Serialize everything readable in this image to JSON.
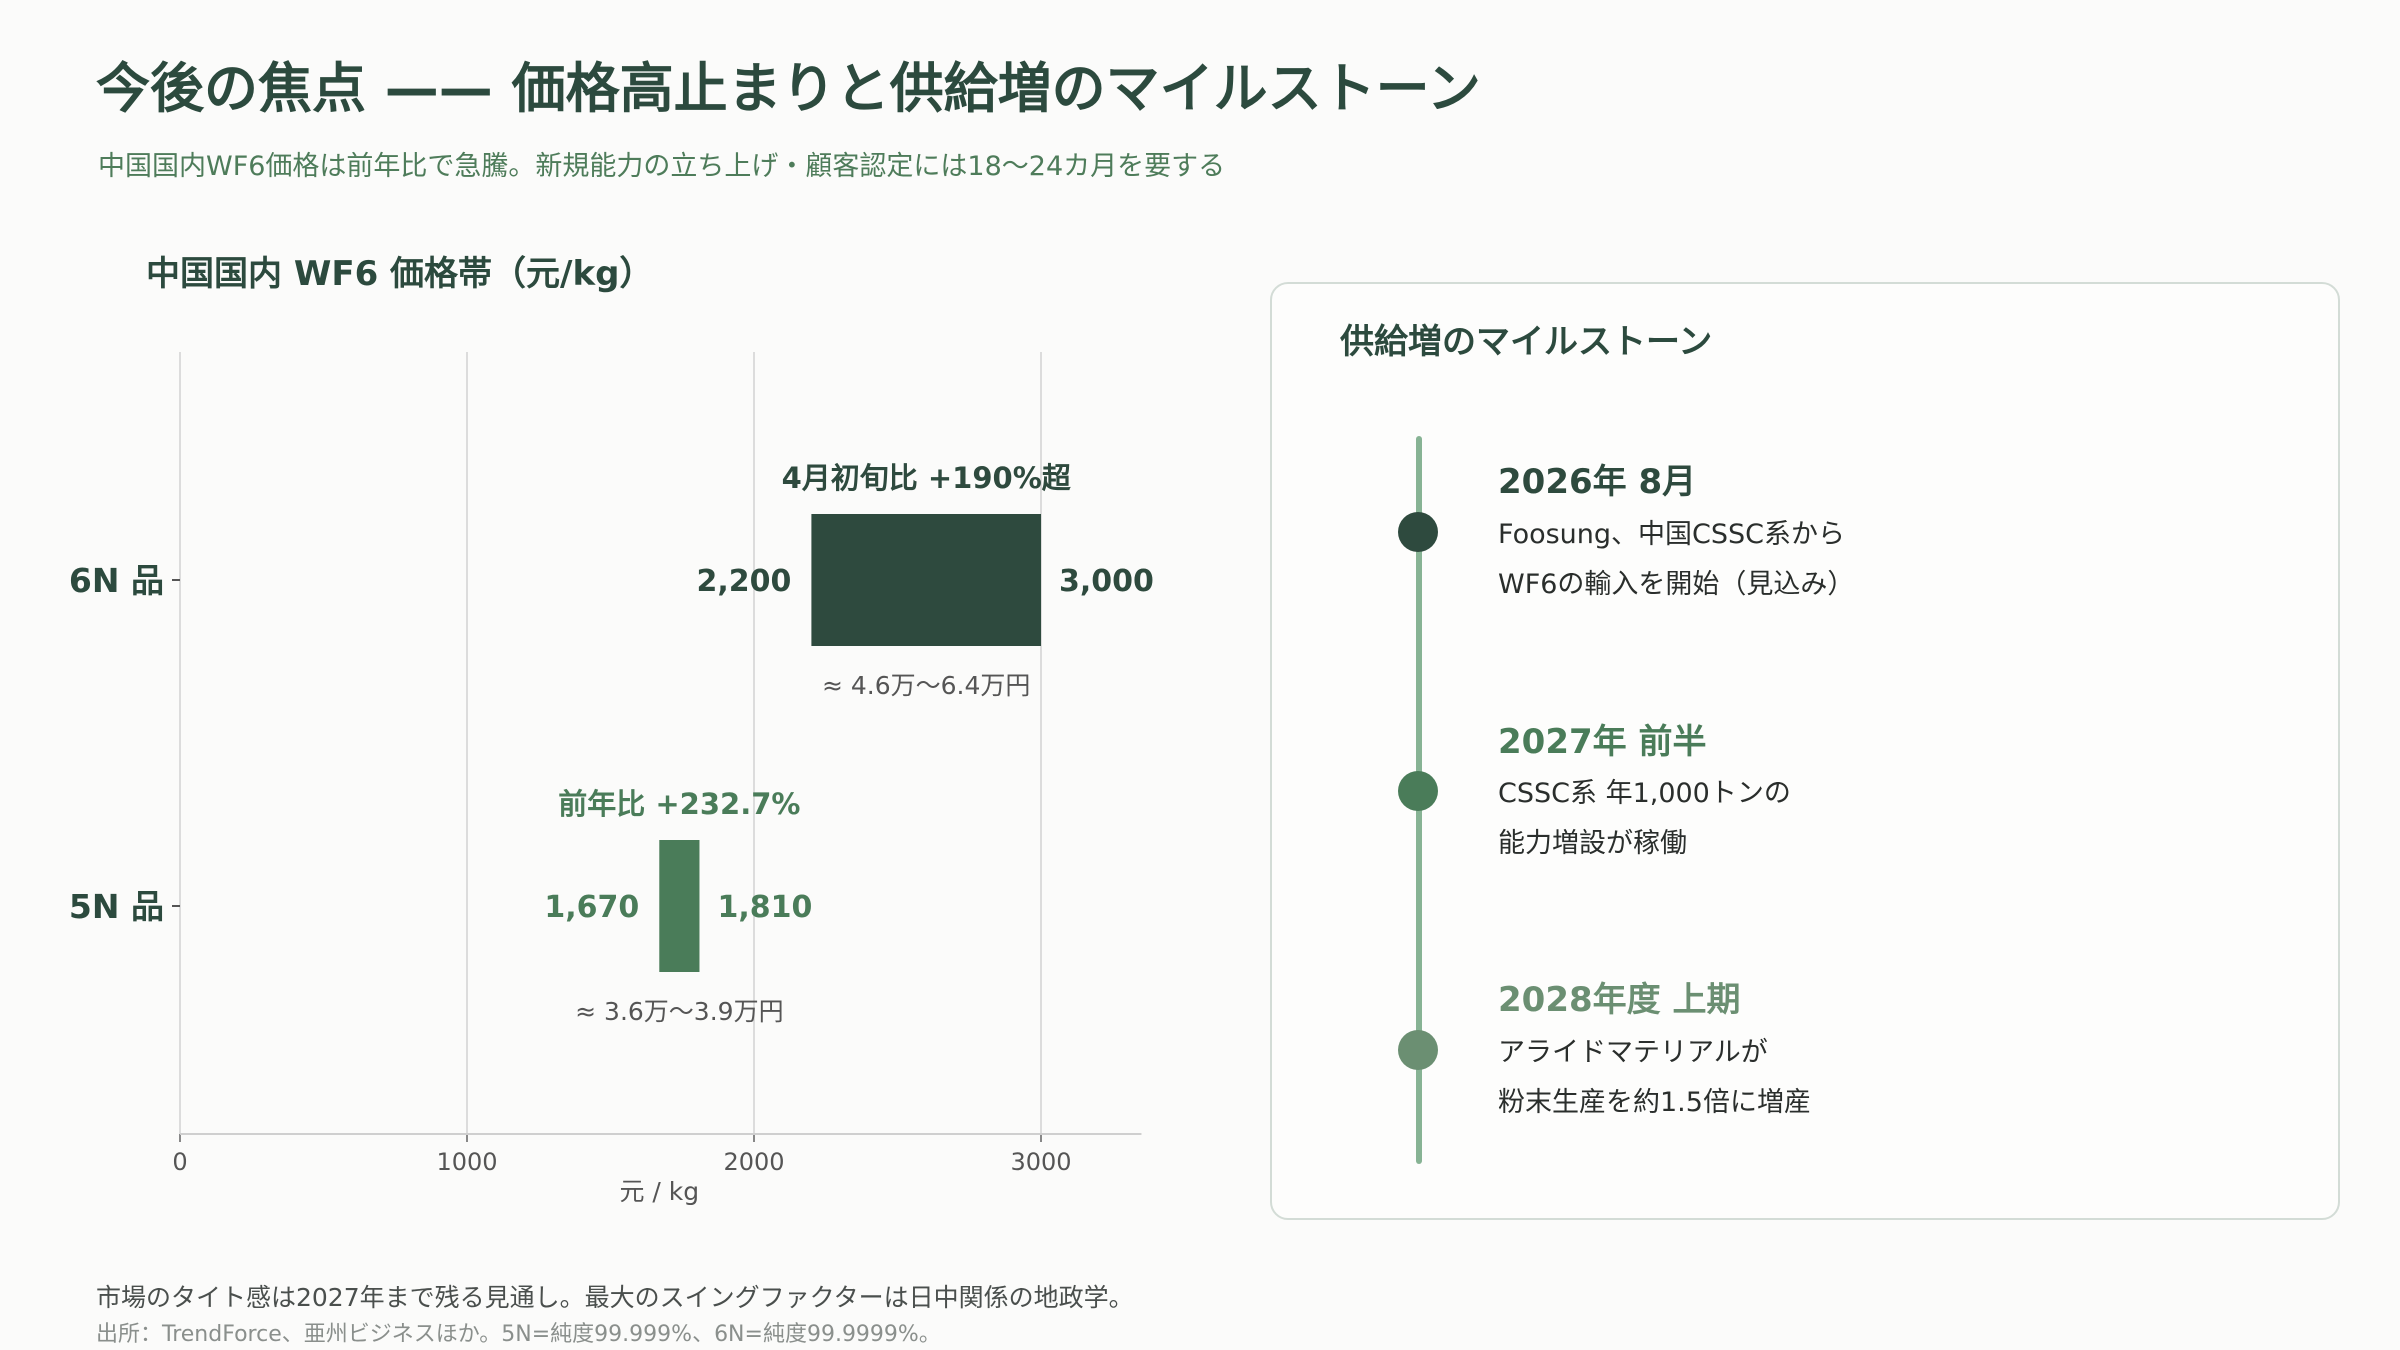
{
  "title": "今後の焦点 —— 価格高止まりと供給増のマイルストーン",
  "subtitle": "中国国内WF6価格は前年比で急騰。新規能力の立ち上げ・顧客認定には18〜24カ月を要する",
  "chart_data": {
    "type": "bar",
    "orientation": "horizontal-range",
    "title": "中国国内 WF6 価格帯（元/kg）",
    "xlabel": "元 / kg",
    "xlim": [
      0,
      3350
    ],
    "xticks": [
      0,
      1000,
      2000,
      3000
    ],
    "grid": true,
    "categories": [
      "6N 品",
      "5N 品"
    ],
    "series": [
      {
        "category": "6N 品",
        "low": 2200,
        "high": 3000,
        "low_label": "2,200",
        "high_label": "3,000",
        "top_label": "4月初旬比 +190%超",
        "bottom_label": "≈ 4.6万〜6.4万円",
        "color": "#2e4a3e"
      },
      {
        "category": "5N 品",
        "low": 1670,
        "high": 1810,
        "low_label": "1,670",
        "high_label": "1,810",
        "top_label": "前年比 +232.7%",
        "bottom_label": "≈ 3.6万〜3.9万円",
        "color": "#4a7c59"
      }
    ]
  },
  "milestones": {
    "title": "供給増のマイルストーン",
    "items": [
      {
        "date": "2026年 8月",
        "lines": [
          "Foosung、中国CSSC系から",
          "WF6の輸入を開始（見込み）"
        ],
        "color": "#2e4a3e"
      },
      {
        "date": "2027年 前半",
        "lines": [
          "CSSC系 年1,000トンの",
          "能力増設が稼働"
        ],
        "color": "#4a7c59"
      },
      {
        "date": "2028年度 上期",
        "lines": [
          "アライドマテリアルが",
          "粉末生産を約1.5倍に増産"
        ],
        "color": "#6b8f72"
      }
    ]
  },
  "footnote": "市場のタイト感は2027年まで残る見通し。最大のスイングファクターは日中関係の地政学。",
  "source": "出所：TrendForce、亜州ビジネスほか。5N=純度99.999%、6N=純度99.9999%。"
}
